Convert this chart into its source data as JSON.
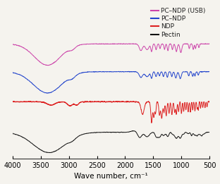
{
  "xlabel": "Wave number, cm⁻¹",
  "xlim": [
    4000,
    500
  ],
  "legend_labels": [
    "PC–NDP (USB)",
    "PC–NDP",
    "NDP",
    "Pectin"
  ],
  "colors": [
    "#cc44aa",
    "#2244cc",
    "#dd2222",
    "#111111"
  ],
  "offsets": [
    2.2,
    1.5,
    0.75,
    0.0
  ],
  "linewidth": 0.7,
  "figsize": [
    3.12,
    2.61
  ],
  "dpi": 100,
  "background": "#f5f3ee",
  "xticks": [
    4000,
    3500,
    3000,
    2500,
    2000,
    1500,
    1000,
    500
  ]
}
